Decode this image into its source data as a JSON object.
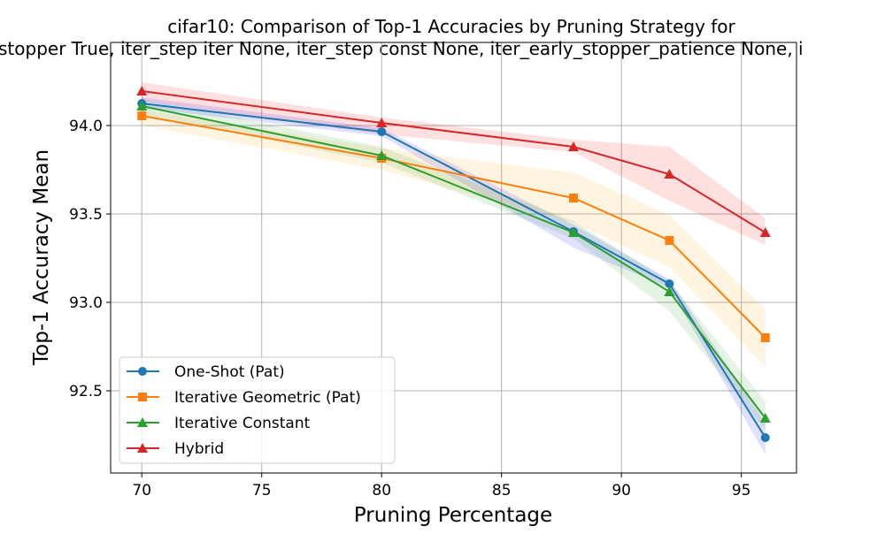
{
  "chart_data": {
    "type": "line",
    "title_lines": [
      "cifar10: Comparison of Top-1 Accuracies by Pruning Strategy for",
      "stopper True, iter_step iter None, iter_step const None, iter_early_stopper_patience None, i"
    ],
    "xlabel": "Pruning Percentage",
    "ylabel": "Top-1 Accuracy Mean",
    "xlim": [
      68.7,
      97.3
    ],
    "ylim": [
      92.035,
      94.47
    ],
    "xticks": [
      70,
      75,
      80,
      85,
      90,
      95
    ],
    "xtick_labels": [
      "70",
      "75",
      "80",
      "85",
      "90",
      "95"
    ],
    "yticks": [
      92.5,
      93.0,
      93.5,
      94.0
    ],
    "ytick_labels": [
      "92.5",
      "93.0",
      "93.5",
      "94.0"
    ],
    "grid": true,
    "legend_position": "lower-left",
    "x": [
      70,
      80,
      88,
      92,
      96
    ],
    "series": [
      {
        "name": "One-Shot (Pat)",
        "color": "#1f77b4",
        "band_color": "#0000ff",
        "marker": "circle",
        "values": [
          94.125,
          93.965,
          93.4,
          93.105,
          92.235
        ],
        "upper": [
          94.16,
          93.985,
          93.44,
          93.13,
          92.32
        ],
        "lower": [
          94.1,
          93.94,
          93.31,
          93.08,
          92.14
        ]
      },
      {
        "name": "Iterative Geometric (Pat)",
        "color": "#ff7f0e",
        "band_color": "#ffa500",
        "marker": "square",
        "values": [
          94.055,
          93.815,
          93.59,
          93.35,
          92.8
        ],
        "upper": [
          94.09,
          93.87,
          93.735,
          93.495,
          92.96
        ],
        "lower": [
          94.0,
          93.75,
          93.45,
          93.2,
          92.635
        ]
      },
      {
        "name": "Iterative Constant",
        "color": "#2ca02c",
        "band_color": "#2ca02c",
        "marker": "triangle",
        "values": [
          94.11,
          93.83,
          93.395,
          93.06,
          92.345
        ],
        "upper": [
          94.15,
          93.88,
          93.46,
          93.12,
          92.44
        ],
        "lower": [
          94.06,
          93.79,
          93.36,
          92.95,
          92.28
        ]
      },
      {
        "name": "Hybrid",
        "color": "#d62728",
        "band_color": "#ff0000",
        "marker": "triangle",
        "values": [
          94.195,
          94.015,
          93.88,
          93.725,
          93.395
        ],
        "upper": [
          94.245,
          94.045,
          93.92,
          93.88,
          93.475
        ],
        "lower": [
          94.14,
          93.95,
          93.85,
          93.575,
          93.325
        ]
      }
    ]
  }
}
